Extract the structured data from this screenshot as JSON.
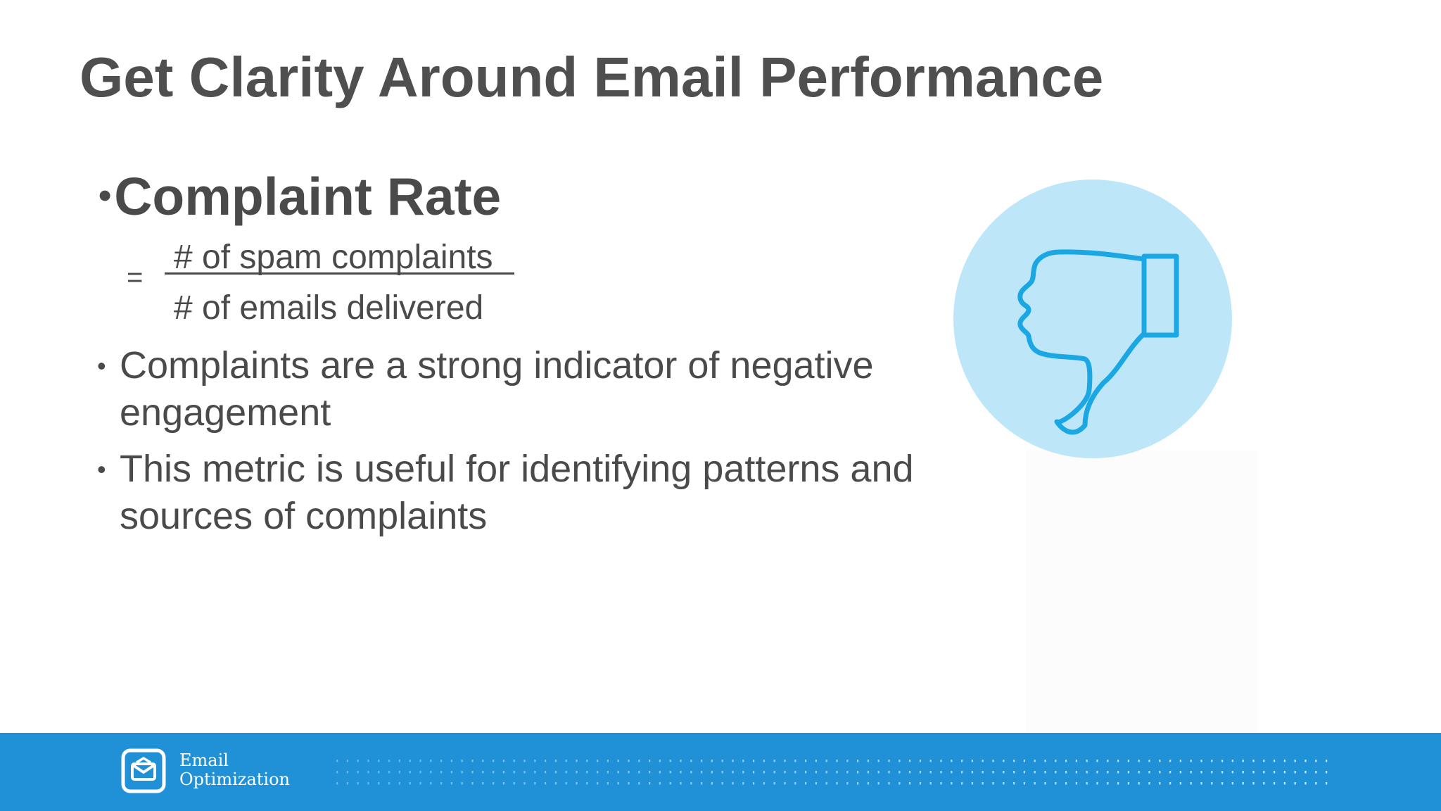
{
  "slide": {
    "title": "Get Clarity Around Email Performance",
    "heading": {
      "bullet": "•",
      "text": "Complaint Rate"
    },
    "formula": {
      "equals": "=",
      "numerator": "# of spam complaints",
      "denominator": "# of emails delivered"
    },
    "bullets": [
      {
        "marker": "•",
        "text": "Complaints are a strong indicator of negative engagement"
      },
      {
        "marker": "•",
        "text": "This metric is useful for identifying patterns and sources of complaints"
      }
    ],
    "illustration": {
      "icon": "thumbs-down-icon",
      "circle_color": "#bde7f8",
      "stroke_color": "#1aa7e4"
    }
  },
  "footer": {
    "background": "#2191d7",
    "logo_icon": "envelope-icon",
    "brand_line1": "Email",
    "brand_line2": "Optimization"
  }
}
